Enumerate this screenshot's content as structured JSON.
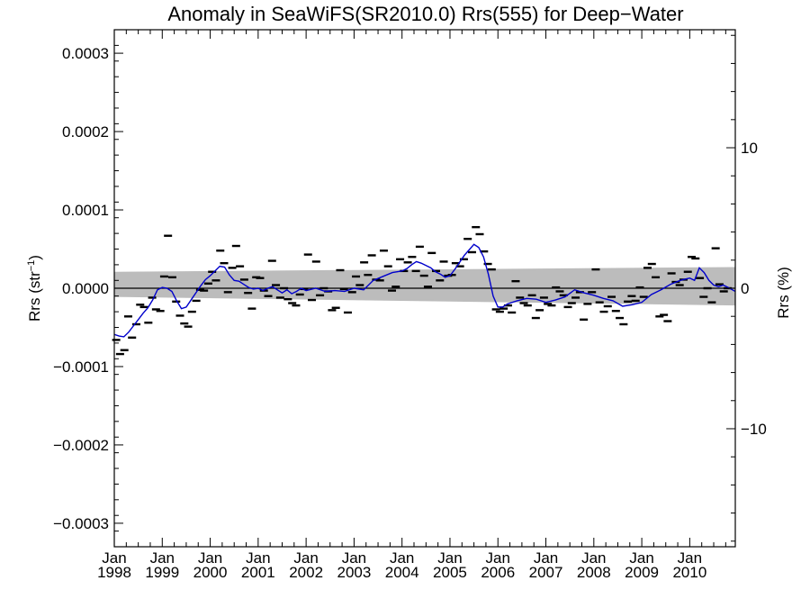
{
  "chart_data": {
    "type": "scatter",
    "title": "Anomaly in SeaWiFS(SR2010.0) Rrs(555) for Deep−Water",
    "ylabel_left": {
      "base": "Rrs (str",
      "sup": "−1",
      "close": ")"
    },
    "ylabel_right": "Rrs (%)",
    "x_range": [
      1998.0,
      2010.95
    ],
    "ylim_left": [
      -0.00033,
      0.00033
    ],
    "ylim_right": [
      -18.4,
      18.4
    ],
    "x_ticks": [
      {
        "value": 1998,
        "month": "Jan",
        "year": "1998"
      },
      {
        "value": 1999,
        "month": "Jan",
        "year": "1999"
      },
      {
        "value": 2000,
        "month": "Jan",
        "year": "2000"
      },
      {
        "value": 2001,
        "month": "Jan",
        "year": "2001"
      },
      {
        "value": 2002,
        "month": "Jan",
        "year": "2002"
      },
      {
        "value": 2003,
        "month": "Jan",
        "year": "2003"
      },
      {
        "value": 2004,
        "month": "Jan",
        "year": "2004"
      },
      {
        "value": 2005,
        "month": "Jan",
        "year": "2005"
      },
      {
        "value": 2006,
        "month": "Jan",
        "year": "2006"
      },
      {
        "value": 2007,
        "month": "Jan",
        "year": "2007"
      },
      {
        "value": 2008,
        "month": "Jan",
        "year": "2008"
      },
      {
        "value": 2009,
        "month": "Jan",
        "year": "2009"
      },
      {
        "value": 2010,
        "month": "Jan",
        "year": "2010"
      }
    ],
    "y_ticks_left": [
      {
        "value": 0.0003,
        "label": "0.0003"
      },
      {
        "value": 0.0002,
        "label": "0.0002"
      },
      {
        "value": 0.0001,
        "label": "0.0001"
      },
      {
        "value": 0.0,
        "label": "0.0000"
      },
      {
        "value": -0.0001,
        "label": "−0.0001"
      },
      {
        "value": -0.0002,
        "label": "−0.0002"
      },
      {
        "value": -0.0003,
        "label": "−0.0003"
      }
    ],
    "y_ticks_right": [
      {
        "value": 10,
        "label": "10"
      },
      {
        "value": 0,
        "label": "0"
      },
      {
        "value": -10,
        "label": "−10"
      }
    ],
    "zero_line": 0.0,
    "uncertainty_band": {
      "x": [
        1998.0,
        2010.95
      ],
      "upper": [
        2.1e-05,
        2.7e-05
      ],
      "lower": [
        -1.1e-05,
        -2.2e-05
      ]
    },
    "monthly_anomalies": {
      "x": [
        1998.04,
        1998.12,
        1998.21,
        1998.29,
        1998.37,
        1998.46,
        1998.54,
        1998.62,
        1998.71,
        1998.79,
        1998.87,
        1998.96,
        1999.04,
        1999.12,
        1999.21,
        1999.29,
        1999.37,
        1999.46,
        1999.54,
        1999.62,
        1999.71,
        1999.79,
        1999.87,
        1999.96,
        2000.04,
        2000.12,
        2000.21,
        2000.29,
        2000.37,
        2000.46,
        2000.54,
        2000.62,
        2000.71,
        2000.79,
        2000.87,
        2000.96,
        2001.04,
        2001.12,
        2001.21,
        2001.29,
        2001.37,
        2001.46,
        2001.54,
        2001.62,
        2001.71,
        2001.79,
        2001.87,
        2001.96,
        2002.04,
        2002.12,
        2002.21,
        2002.29,
        2002.37,
        2002.46,
        2002.54,
        2002.62,
        2002.71,
        2002.79,
        2002.87,
        2002.96,
        2003.04,
        2003.12,
        2003.21,
        2003.29,
        2003.37,
        2003.46,
        2003.54,
        2003.62,
        2003.71,
        2003.79,
        2003.87,
        2003.96,
        2004.04,
        2004.12,
        2004.21,
        2004.29,
        2004.37,
        2004.46,
        2004.54,
        2004.62,
        2004.71,
        2004.79,
        2004.87,
        2004.96,
        2005.04,
        2005.12,
        2005.21,
        2005.29,
        2005.37,
        2005.46,
        2005.54,
        2005.62,
        2005.71,
        2005.79,
        2005.87,
        2005.96,
        2006.04,
        2006.12,
        2006.21,
        2006.29,
        2006.37,
        2006.46,
        2006.54,
        2006.62,
        2006.71,
        2006.79,
        2006.87,
        2006.96,
        2007.04,
        2007.12,
        2007.21,
        2007.29,
        2007.37,
        2007.46,
        2007.54,
        2007.62,
        2007.71,
        2007.79,
        2007.87,
        2007.96,
        2008.04,
        2008.12,
        2008.21,
        2008.29,
        2008.37,
        2008.46,
        2008.54,
        2008.62,
        2008.71,
        2008.79,
        2008.87,
        2008.96,
        2009.04,
        2009.12,
        2009.21,
        2009.29,
        2009.37,
        2009.46,
        2009.54,
        2009.62,
        2009.71,
        2009.79,
        2009.87,
        2009.96,
        2010.04,
        2010.12,
        2010.21,
        2010.29,
        2010.37,
        2010.46,
        2010.54,
        2010.62,
        2010.71,
        2010.79
      ],
      "y": [
        -6.6e-05,
        -8.4e-05,
        -7.9e-05,
        -3.6e-05,
        -6.3e-05,
        -4.6e-05,
        -2.1e-05,
        -2.4e-05,
        -4.4e-05,
        -1.2e-05,
        -2.7e-05,
        -2.9e-05,
        1.5e-05,
        6.7e-05,
        1.4e-05,
        -1.7e-05,
        -3.5e-05,
        -4.5e-05,
        -4.9e-05,
        -3e-05,
        -1.6e-05,
        -2e-06,
        -3e-06,
        6e-06,
        2.1e-05,
        1e-05,
        4.8e-05,
        3.2e-05,
        -5e-06,
        2.6e-05,
        5.4e-05,
        2.8e-05,
        1.1e-05,
        -6e-06,
        -2.6e-05,
        1.4e-05,
        1.3e-05,
        -3e-06,
        -1e-05,
        3.5e-05,
        4e-06,
        -1.2e-05,
        0.0,
        -1.4e-05,
        -1.9e-05,
        -2.2e-05,
        -8e-06,
        -1e-06,
        4.3e-05,
        -1.5e-05,
        3.4e-05,
        -9e-06,
        0.0,
        -4e-06,
        -2.8e-05,
        -2.5e-05,
        2.3e-05,
        -1e-06,
        -3.1e-05,
        -5e-06,
        1.5e-05,
        4e-06,
        3.3e-05,
        1.7e-05,
        4.2e-05,
        1.1e-05,
        1e-05,
        4.8e-05,
        2.8e-05,
        -3e-06,
        2e-06,
        3.7e-05,
        2.2e-05,
        3.3e-05,
        4e-05,
        2.2e-05,
        5.3e-05,
        1.6e-05,
        2e-06,
        4.5e-05,
        2.2e-05,
        1e-05,
        3.4e-05,
        1.6e-05,
        1.7e-05,
        3.2e-05,
        2.8e-05,
        3.7e-05,
        6.3e-05,
        4.6e-05,
        7.8e-05,
        6.9e-05,
        4.7e-05,
        3.1e-05,
        2.4e-05,
        -2.7e-05,
        -3e-05,
        -2.6e-05,
        -2.2e-05,
        -3.1e-05,
        9e-06,
        -1.2e-05,
        -1.9e-05,
        -2.2e-05,
        -9e-06,
        -3.8e-05,
        -2.8e-05,
        -1.2e-05,
        -2e-05,
        -2.2e-05,
        1e-06,
        -4e-06,
        -9e-06,
        -2.4e-05,
        -1.9e-05,
        -1.2e-05,
        -5e-06,
        -4e-05,
        -2e-05,
        -5e-06,
        2.4e-05,
        -1.8e-05,
        -3e-05,
        -2.3e-05,
        -1.1e-05,
        -2.9e-05,
        -3.8e-05,
        -4.6e-05,
        -1.7e-05,
        -1e-05,
        -1.6e-05,
        1e-06,
        -1.1e-05,
        2.6e-05,
        3.1e-05,
        1.4e-05,
        -3.6e-05,
        -3.4e-05,
        -4.2e-05,
        1.9e-05,
        8e-06,
        4e-06,
        1.1e-05,
        2.1e-05,
        4e-05,
        3.8e-05,
        1.3e-05,
        -1.1e-05,
        0.0,
        -1.8e-05,
        5.1e-05,
        5e-06,
        -4e-06,
        0.0
      ]
    },
    "smoothed_series": {
      "x": [
        1998.0,
        1998.1,
        1998.2,
        1998.3,
        1998.4,
        1998.5,
        1998.6,
        1998.7,
        1998.8,
        1998.9,
        1999.0,
        1999.1,
        1999.2,
        1999.3,
        1999.4,
        1999.5,
        1999.6,
        1999.7,
        1999.8,
        1999.9,
        2000.0,
        2000.1,
        2000.2,
        2000.3,
        2000.4,
        2000.5,
        2000.6,
        2000.7,
        2000.8,
        2000.9,
        2001.0,
        2001.1,
        2001.2,
        2001.3,
        2001.4,
        2001.5,
        2001.6,
        2001.7,
        2001.8,
        2001.9,
        2002.0,
        2002.2,
        2002.4,
        2002.6,
        2002.8,
        2003.0,
        2003.2,
        2003.4,
        2003.6,
        2003.8,
        2004.0,
        2004.1,
        2004.2,
        2004.3,
        2004.4,
        2004.5,
        2004.6,
        2004.7,
        2004.8,
        2004.9,
        2005.0,
        2005.1,
        2005.2,
        2005.3,
        2005.4,
        2005.5,
        2005.6,
        2005.7,
        2005.8,
        2005.9,
        2006.0,
        2006.1,
        2006.2,
        2006.4,
        2006.6,
        2006.8,
        2007.0,
        2007.2,
        2007.4,
        2007.6,
        2007.8,
        2008.0,
        2008.2,
        2008.4,
        2008.6,
        2008.8,
        2009.0,
        2009.2,
        2009.4,
        2009.6,
        2009.8,
        2010.0,
        2010.1,
        2010.2,
        2010.3,
        2010.4,
        2010.5,
        2010.6,
        2010.7,
        2010.8,
        2010.95
      ],
      "y": [
        -5.9e-05,
        -6.1e-05,
        -6.2e-05,
        -5.6e-05,
        -4.8e-05,
        -4e-05,
        -3.2e-05,
        -2.5e-05,
        -1.5e-05,
        -2e-06,
        1e-06,
        0.0,
        -4e-06,
        -1.6e-05,
        -2.6e-05,
        -2.4e-05,
        -1.5e-05,
        -6e-06,
        3e-06,
        1.1e-05,
        1.6e-05,
        2.2e-05,
        2.8e-05,
        2.7e-05,
        1.7e-05,
        1e-05,
        9e-06,
        5e-06,
        1e-06,
        -1e-06,
        0.0,
        -3e-06,
        0.0,
        2e-06,
        -2e-06,
        -6e-06,
        -2e-06,
        -7e-06,
        -4e-06,
        0.0,
        -3e-06,
        0.0,
        -4e-06,
        -3e-06,
        -4e-06,
        0.0,
        -2e-06,
        1e-05,
        1.5e-05,
        2e-05,
        2.2e-05,
        2.5e-05,
        3e-05,
        3.4e-05,
        3.2e-05,
        2.9e-05,
        2.6e-05,
        2.1e-05,
        1.8e-05,
        1.4e-05,
        1.6e-05,
        2.4e-05,
        3.3e-05,
        4.2e-05,
        4.9e-05,
        5.6e-05,
        5.2e-05,
        4e-05,
        1.8e-05,
        -1e-05,
        -2.4e-05,
        -2.4e-05,
        -2e-05,
        -1.6e-05,
        -1.3e-05,
        -1.4e-05,
        -1.8e-05,
        -1.5e-05,
        -1.1e-05,
        -2e-06,
        -6e-06,
        -9e-06,
        -1.3e-05,
        -1.6e-05,
        -2.3e-05,
        -2.1e-05,
        -1.8e-05,
        -8e-06,
        -2e-06,
        5e-06,
        1e-05,
        1.3e-05,
        1e-05,
        2.6e-05,
        2e-05,
        1e-05,
        4e-06,
        2e-06,
        4e-06,
        1e-06,
        -4e-06
      ]
    },
    "colors": {
      "smoothed_line": "#0000cc",
      "band_fill": "#bcbcbc",
      "points": "#000000",
      "axes": "#000000"
    },
    "grid": false,
    "legend": "none"
  }
}
